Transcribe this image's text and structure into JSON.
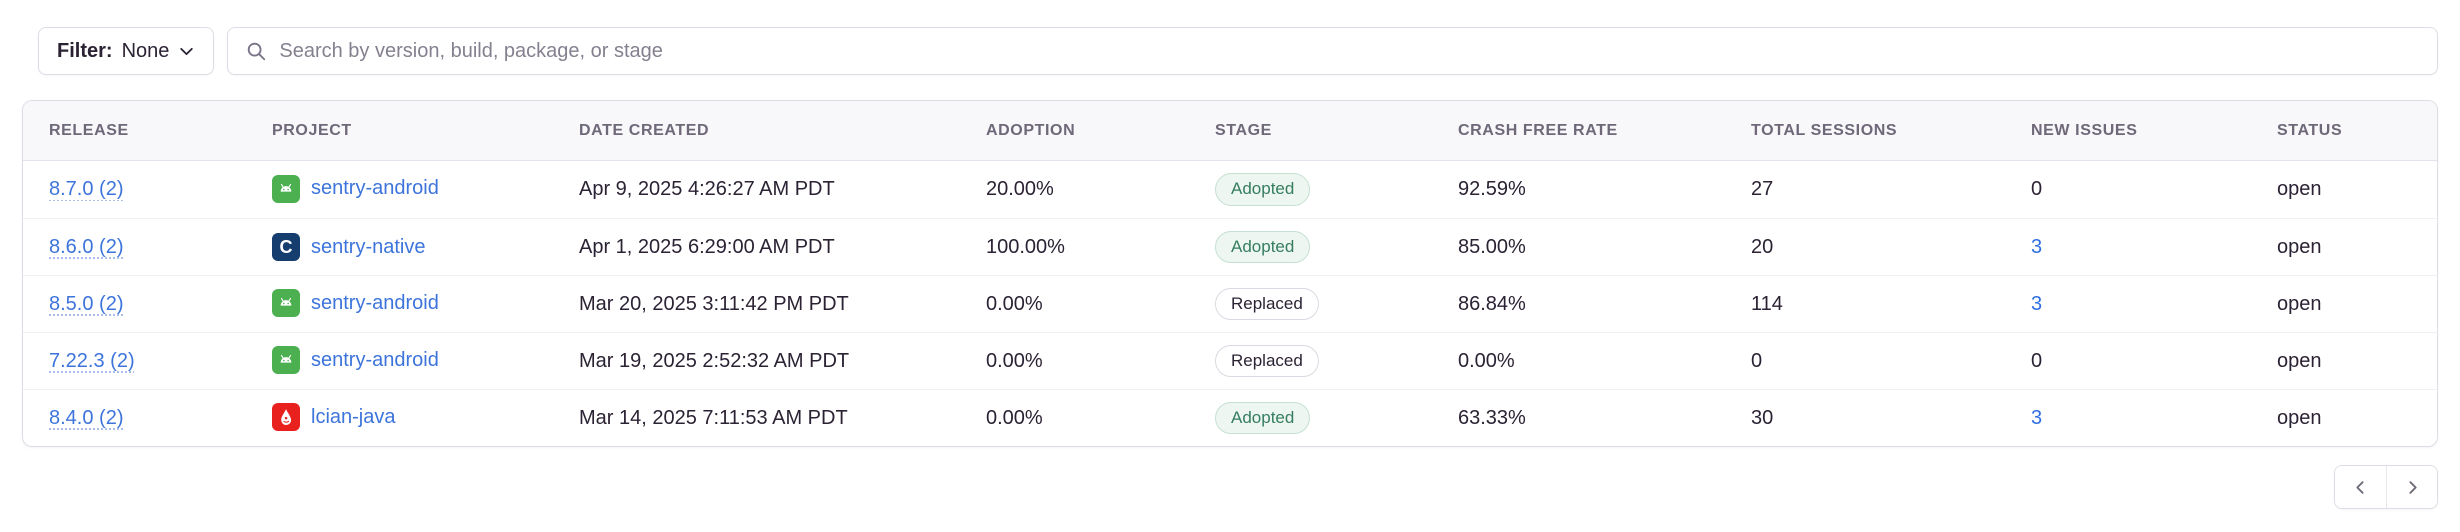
{
  "filter": {
    "label": "Filter:",
    "value": "None"
  },
  "search": {
    "placeholder": "Search by version, build, package, or stage"
  },
  "table": {
    "columns": [
      "RELEASE",
      "PROJECT",
      "DATE CREATED",
      "ADOPTION",
      "STAGE",
      "CRASH FREE RATE",
      "TOTAL SESSIONS",
      "NEW ISSUES",
      "STATUS"
    ],
    "rows": [
      {
        "release": "8.7.0 (2)",
        "project": "sentry-android",
        "platform": "android",
        "date": "Apr 9, 2025 4:26:27 AM PDT",
        "adoption": "20.00%",
        "stage": "Adopted",
        "crash_free": "92.59%",
        "sessions": "27",
        "new_issues": "0",
        "new_issues_link": false,
        "status": "open"
      },
      {
        "release": "8.6.0 (2)",
        "project": "sentry-native",
        "platform": "native",
        "date": "Apr 1, 2025 6:29:00 AM PDT",
        "adoption": "100.00%",
        "stage": "Adopted",
        "crash_free": "85.00%",
        "sessions": "20",
        "new_issues": "3",
        "new_issues_link": true,
        "status": "open"
      },
      {
        "release": "8.5.0 (2)",
        "project": "sentry-android",
        "platform": "android",
        "date": "Mar 20, 2025 3:11:42 PM PDT",
        "adoption": "0.00%",
        "stage": "Replaced",
        "crash_free": "86.84%",
        "sessions": "114",
        "new_issues": "3",
        "new_issues_link": true,
        "status": "open"
      },
      {
        "release": "7.22.3 (2)",
        "project": "sentry-android",
        "platform": "android",
        "date": "Mar 19, 2025 2:52:32 AM PDT",
        "adoption": "0.00%",
        "stage": "Replaced",
        "crash_free": "0.00%",
        "sessions": "0",
        "new_issues": "0",
        "new_issues_link": false,
        "status": "open"
      },
      {
        "release": "8.4.0 (2)",
        "project": "lcian-java",
        "platform": "java",
        "date": "Mar 14, 2025 7:11:53 AM PDT",
        "adoption": "0.00%",
        "stage": "Adopted",
        "crash_free": "63.33%",
        "sessions": "30",
        "new_issues": "3",
        "new_issues_link": true,
        "status": "open"
      }
    ]
  },
  "colors": {
    "link_blue": "#3d74db",
    "adopted_green": "#347d61",
    "android_icon_bg": "#4caf50",
    "native_icon_bg": "#153e6f",
    "java_icon_bg": "#e8211f",
    "header_text": "#6e6878",
    "body_text": "#2b2233",
    "border": "#e0dce5"
  }
}
